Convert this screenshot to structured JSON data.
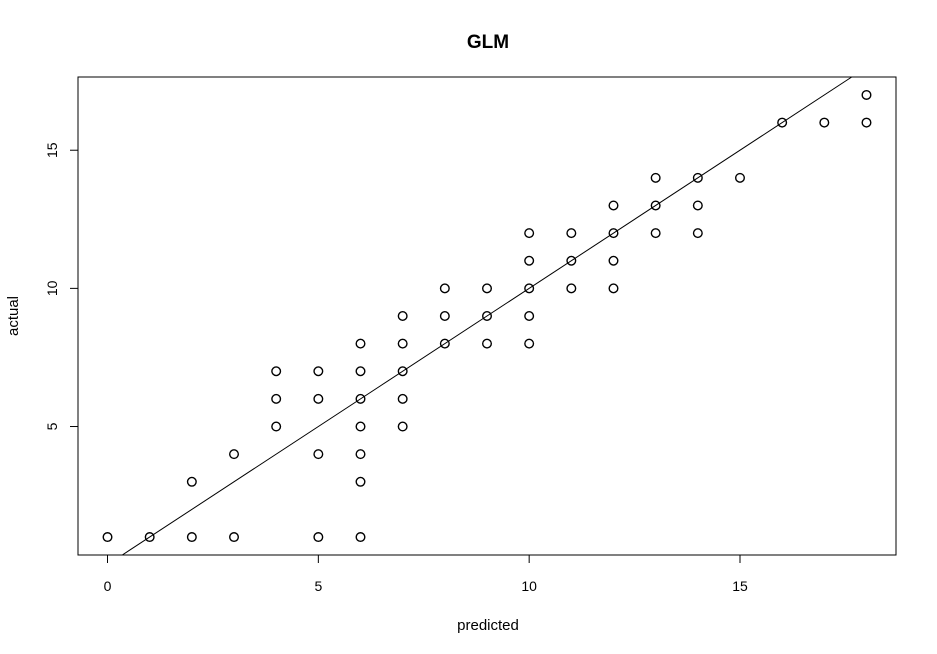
{
  "chart_data": {
    "type": "scatter",
    "title": "GLM",
    "xlabel": "predicted",
    "ylabel": "actual",
    "xlim": [
      -0.7,
      18.7
    ],
    "ylim": [
      0.35,
      17.65
    ],
    "xticks": [
      0,
      5,
      10,
      15
    ],
    "yticks": [
      5,
      10,
      15
    ],
    "grid": false,
    "marker": "open-circle",
    "points": [
      [
        0,
        1
      ],
      [
        1,
        1
      ],
      [
        2,
        1
      ],
      [
        2,
        3
      ],
      [
        3,
        1
      ],
      [
        3,
        4
      ],
      [
        4,
        5
      ],
      [
        4,
        6
      ],
      [
        4,
        7
      ],
      [
        5,
        1
      ],
      [
        5,
        4
      ],
      [
        5,
        6
      ],
      [
        5,
        7
      ],
      [
        6,
        1
      ],
      [
        6,
        3
      ],
      [
        6,
        4
      ],
      [
        6,
        5
      ],
      [
        6,
        6
      ],
      [
        6,
        7
      ],
      [
        6,
        8
      ],
      [
        7,
        5
      ],
      [
        7,
        6
      ],
      [
        7,
        7
      ],
      [
        7,
        8
      ],
      [
        7,
        9
      ],
      [
        8,
        8
      ],
      [
        8,
        9
      ],
      [
        8,
        10
      ],
      [
        9,
        8
      ],
      [
        9,
        9
      ],
      [
        9,
        10
      ],
      [
        10,
        8
      ],
      [
        10,
        9
      ],
      [
        10,
        10
      ],
      [
        10,
        11
      ],
      [
        10,
        12
      ],
      [
        11,
        10
      ],
      [
        11,
        11
      ],
      [
        11,
        12
      ],
      [
        12,
        10
      ],
      [
        12,
        11
      ],
      [
        12,
        12
      ],
      [
        12,
        13
      ],
      [
        13,
        12
      ],
      [
        13,
        13
      ],
      [
        13,
        14
      ],
      [
        14,
        12
      ],
      [
        14,
        13
      ],
      [
        14,
        14
      ],
      [
        15,
        14
      ],
      [
        16,
        16
      ],
      [
        17,
        16
      ],
      [
        18,
        16
      ],
      [
        18,
        17
      ]
    ],
    "reference_line": {
      "from": [
        0,
        0
      ],
      "to": [
        18.7,
        18.7
      ]
    }
  }
}
